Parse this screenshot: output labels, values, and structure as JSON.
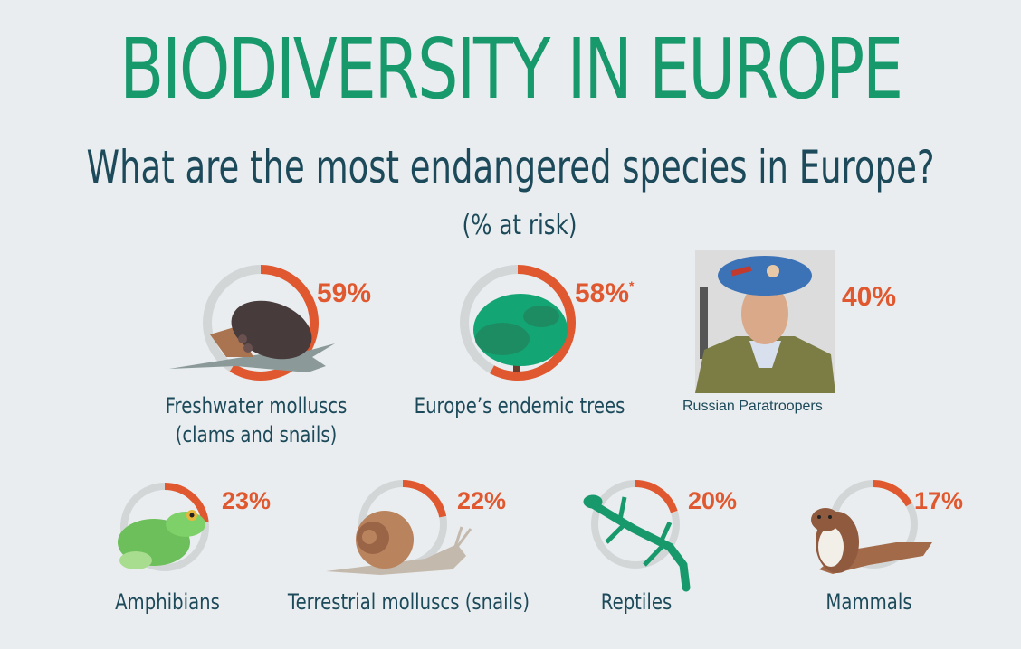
{
  "header": {
    "title": "BIODIVERSITY IN EUROPE",
    "subtitle": "What are the most endangered species in Europe?",
    "unit": "(% at risk)"
  },
  "colors": {
    "title": "#17996c",
    "text": "#1c4a5a",
    "accent": "#e0582f",
    "ring": "#d3d6d7",
    "background": "#e9edef"
  },
  "chart_data": {
    "type": "donut",
    "title": "What are the most endangered species in Europe?",
    "unit": "% at risk",
    "categories": [
      "Freshwater molluscs (clams and snails)",
      "Europe's endemic trees",
      "Russian Paratroopers",
      "Amphibians",
      "Terrestrial molluscs (snails)",
      "Reptiles",
      "Mammals"
    ],
    "values": [
      59,
      58,
      40,
      23,
      22,
      20,
      17
    ],
    "items": [
      {
        "label": "Freshwater molluscs",
        "label2": "(clams and snails)",
        "value": 59,
        "pct": "59%",
        "icon": "freshwater-snail-icon"
      },
      {
        "label": "Europe’s endemic trees",
        "value": 58,
        "pct": "58%",
        "note": "*",
        "icon": "tree-icon"
      },
      {
        "label": "Russian Paratroopers",
        "value": 40,
        "pct": "40%",
        "icon": "paratrooper-portrait"
      },
      {
        "label": "Amphibians",
        "value": 23,
        "pct": "23%",
        "icon": "frog-icon"
      },
      {
        "label": "Terrestrial molluscs (snails)",
        "value": 22,
        "pct": "22%",
        "icon": "snail-icon"
      },
      {
        "label": "Reptiles",
        "value": 20,
        "pct": "20%",
        "icon": "lizard-icon"
      },
      {
        "label": "Mammals",
        "value": 17,
        "pct": "17%",
        "icon": "otter-icon"
      }
    ]
  }
}
